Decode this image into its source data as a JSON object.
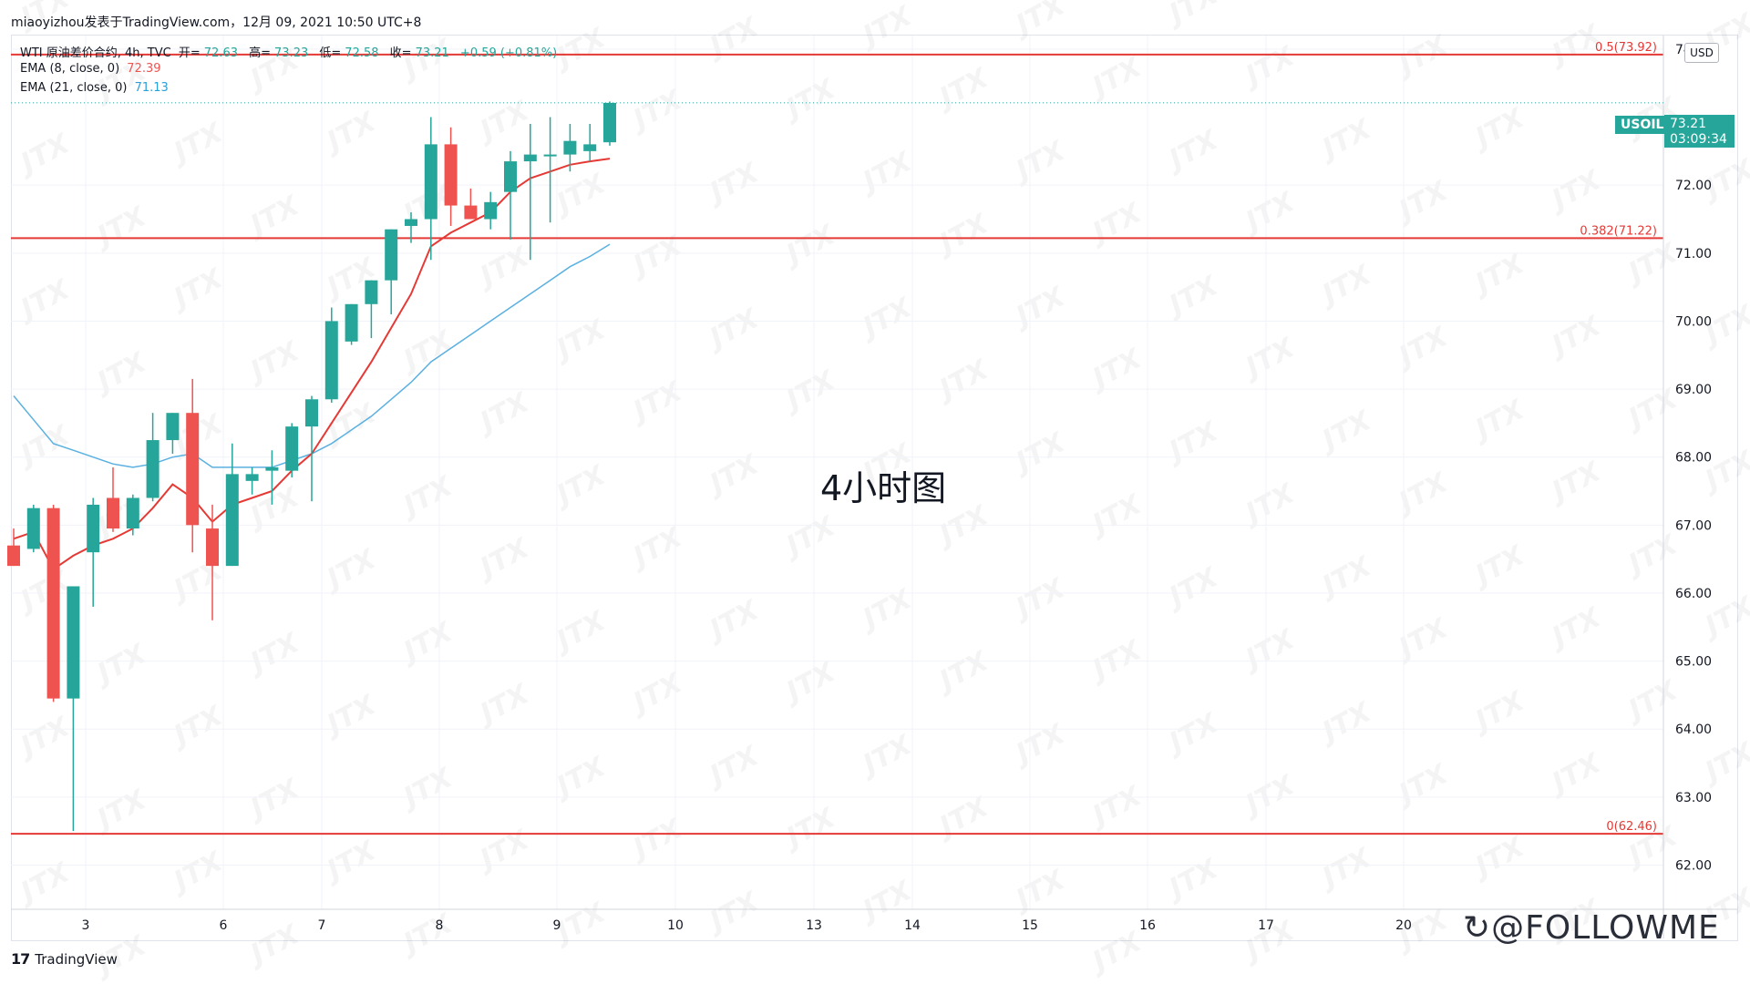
{
  "header": {
    "publisher_line": "miaoyizhou发表于TradingView.com，12月 09, 2021 10:50 UTC+8"
  },
  "legend": {
    "instrument": "WTI 原油差价合约, 4h, TVC",
    "open_label": "开=",
    "open": "72.63",
    "high_label": "高=",
    "high": "73.23",
    "low_label": "低=",
    "low": "72.58",
    "close_label": "收=",
    "close": "73.21",
    "change": "+0.59 (+0.81%)",
    "ema8_label": "EMA (8, close, 0)",
    "ema8_value": "72.39",
    "ema21_label": "EMA (21, close, 0)",
    "ema21_value": "71.13"
  },
  "center_label": "4小时图",
  "currency": "USD",
  "price_tag": {
    "symbol": "USOIL",
    "price": "73.21",
    "countdown": "03:09:34"
  },
  "branding": {
    "tradingview": "TradingView",
    "followme": "@FOLLOWME",
    "watermark": "JTX"
  },
  "colors": {
    "up": "#26a69a",
    "down": "#ef5350",
    "ema8": "#e53935",
    "ema21": "#5ab0e0",
    "fib": "#e53935"
  },
  "chart_data": {
    "type": "candlestick",
    "timeframe": "4h",
    "x_tick_labels": [
      "3",
      "6",
      "7",
      "8",
      "9",
      "10",
      "13",
      "14",
      "15",
      "16",
      "17",
      "20"
    ],
    "y_tick_labels": [
      "74.00",
      "72.00",
      "71.00",
      "70.00",
      "69.00",
      "68.00",
      "67.00",
      "66.00",
      "65.00",
      "64.00",
      "63.00",
      "62.00"
    ],
    "ylim": [
      61.35,
      74.2
    ],
    "fib_levels": [
      {
        "label": "0.5(73.92)",
        "value": 73.92
      },
      {
        "label": "0.382(71.22)",
        "value": 71.22
      },
      {
        "label": "0(62.46)",
        "value": 62.46
      }
    ],
    "last_price": 73.21,
    "candles": [
      {
        "o": 66.7,
        "h": 66.95,
        "l": 66.4,
        "c": 66.4
      },
      {
        "o": 66.65,
        "h": 67.3,
        "l": 66.6,
        "c": 67.25
      },
      {
        "o": 67.25,
        "h": 67.3,
        "l": 64.4,
        "c": 64.45
      },
      {
        "o": 64.45,
        "h": 66.1,
        "l": 62.5,
        "c": 66.1
      },
      {
        "o": 66.6,
        "h": 67.4,
        "l": 65.8,
        "c": 67.3
      },
      {
        "o": 67.4,
        "h": 67.85,
        "l": 66.9,
        "c": 66.95
      },
      {
        "o": 66.95,
        "h": 67.45,
        "l": 66.85,
        "c": 67.4
      },
      {
        "o": 67.4,
        "h": 68.65,
        "l": 67.35,
        "c": 68.25
      },
      {
        "o": 68.25,
        "h": 68.65,
        "l": 68.05,
        "c": 68.65
      },
      {
        "o": 68.65,
        "h": 69.15,
        "l": 66.6,
        "c": 67.0
      },
      {
        "o": 66.95,
        "h": 67.3,
        "l": 65.6,
        "c": 66.4
      },
      {
        "o": 66.4,
        "h": 68.2,
        "l": 66.4,
        "c": 67.75
      },
      {
        "o": 67.65,
        "h": 67.85,
        "l": 67.45,
        "c": 67.75
      },
      {
        "o": 67.8,
        "h": 68.1,
        "l": 67.3,
        "c": 67.85
      },
      {
        "o": 67.8,
        "h": 68.5,
        "l": 67.7,
        "c": 68.45
      },
      {
        "o": 68.45,
        "h": 68.9,
        "l": 67.35,
        "c": 68.85
      },
      {
        "o": 68.85,
        "h": 70.2,
        "l": 68.8,
        "c": 70.0
      },
      {
        "o": 69.7,
        "h": 70.25,
        "l": 69.65,
        "c": 70.25
      },
      {
        "o": 70.25,
        "h": 70.6,
        "l": 69.75,
        "c": 70.6
      },
      {
        "o": 70.6,
        "h": 71.35,
        "l": 70.1,
        "c": 71.35
      },
      {
        "o": 71.4,
        "h": 71.6,
        "l": 71.15,
        "c": 71.5
      },
      {
        "o": 71.5,
        "h": 73.0,
        "l": 70.9,
        "c": 72.6
      },
      {
        "o": 72.6,
        "h": 72.85,
        "l": 71.4,
        "c": 71.7
      },
      {
        "o": 71.7,
        "h": 71.95,
        "l": 71.5,
        "c": 71.5
      },
      {
        "o": 71.5,
        "h": 71.9,
        "l": 71.35,
        "c": 71.75
      },
      {
        "o": 71.9,
        "h": 72.5,
        "l": 71.2,
        "c": 72.35
      },
      {
        "o": 72.35,
        "h": 72.9,
        "l": 70.9,
        "c": 72.45
      },
      {
        "o": 72.45,
        "h": 73.0,
        "l": 71.45,
        "c": 72.45
      },
      {
        "o": 72.45,
        "h": 72.9,
        "l": 72.2,
        "c": 72.65
      },
      {
        "o": 72.5,
        "h": 72.9,
        "l": 72.35,
        "c": 72.6
      },
      {
        "o": 72.63,
        "h": 73.23,
        "l": 72.58,
        "c": 73.21
      }
    ],
    "ema8": [
      66.8,
      66.9,
      66.35,
      66.55,
      66.7,
      66.8,
      66.95,
      67.25,
      67.6,
      67.4,
      67.05,
      67.3,
      67.4,
      67.5,
      67.8,
      68.05,
      68.5,
      68.95,
      69.4,
      69.9,
      70.4,
      71.1,
      71.3,
      71.45,
      71.6,
      71.9,
      72.1,
      72.2,
      72.3,
      72.35,
      72.39
    ],
    "ema21": [
      68.9,
      68.55,
      68.2,
      68.1,
      68.0,
      67.9,
      67.85,
      67.9,
      68.0,
      68.05,
      67.85,
      67.85,
      67.85,
      67.85,
      67.95,
      68.05,
      68.2,
      68.4,
      68.6,
      68.85,
      69.1,
      69.4,
      69.6,
      69.8,
      70.0,
      70.2,
      70.4,
      70.6,
      70.8,
      70.95,
      71.13
    ]
  }
}
